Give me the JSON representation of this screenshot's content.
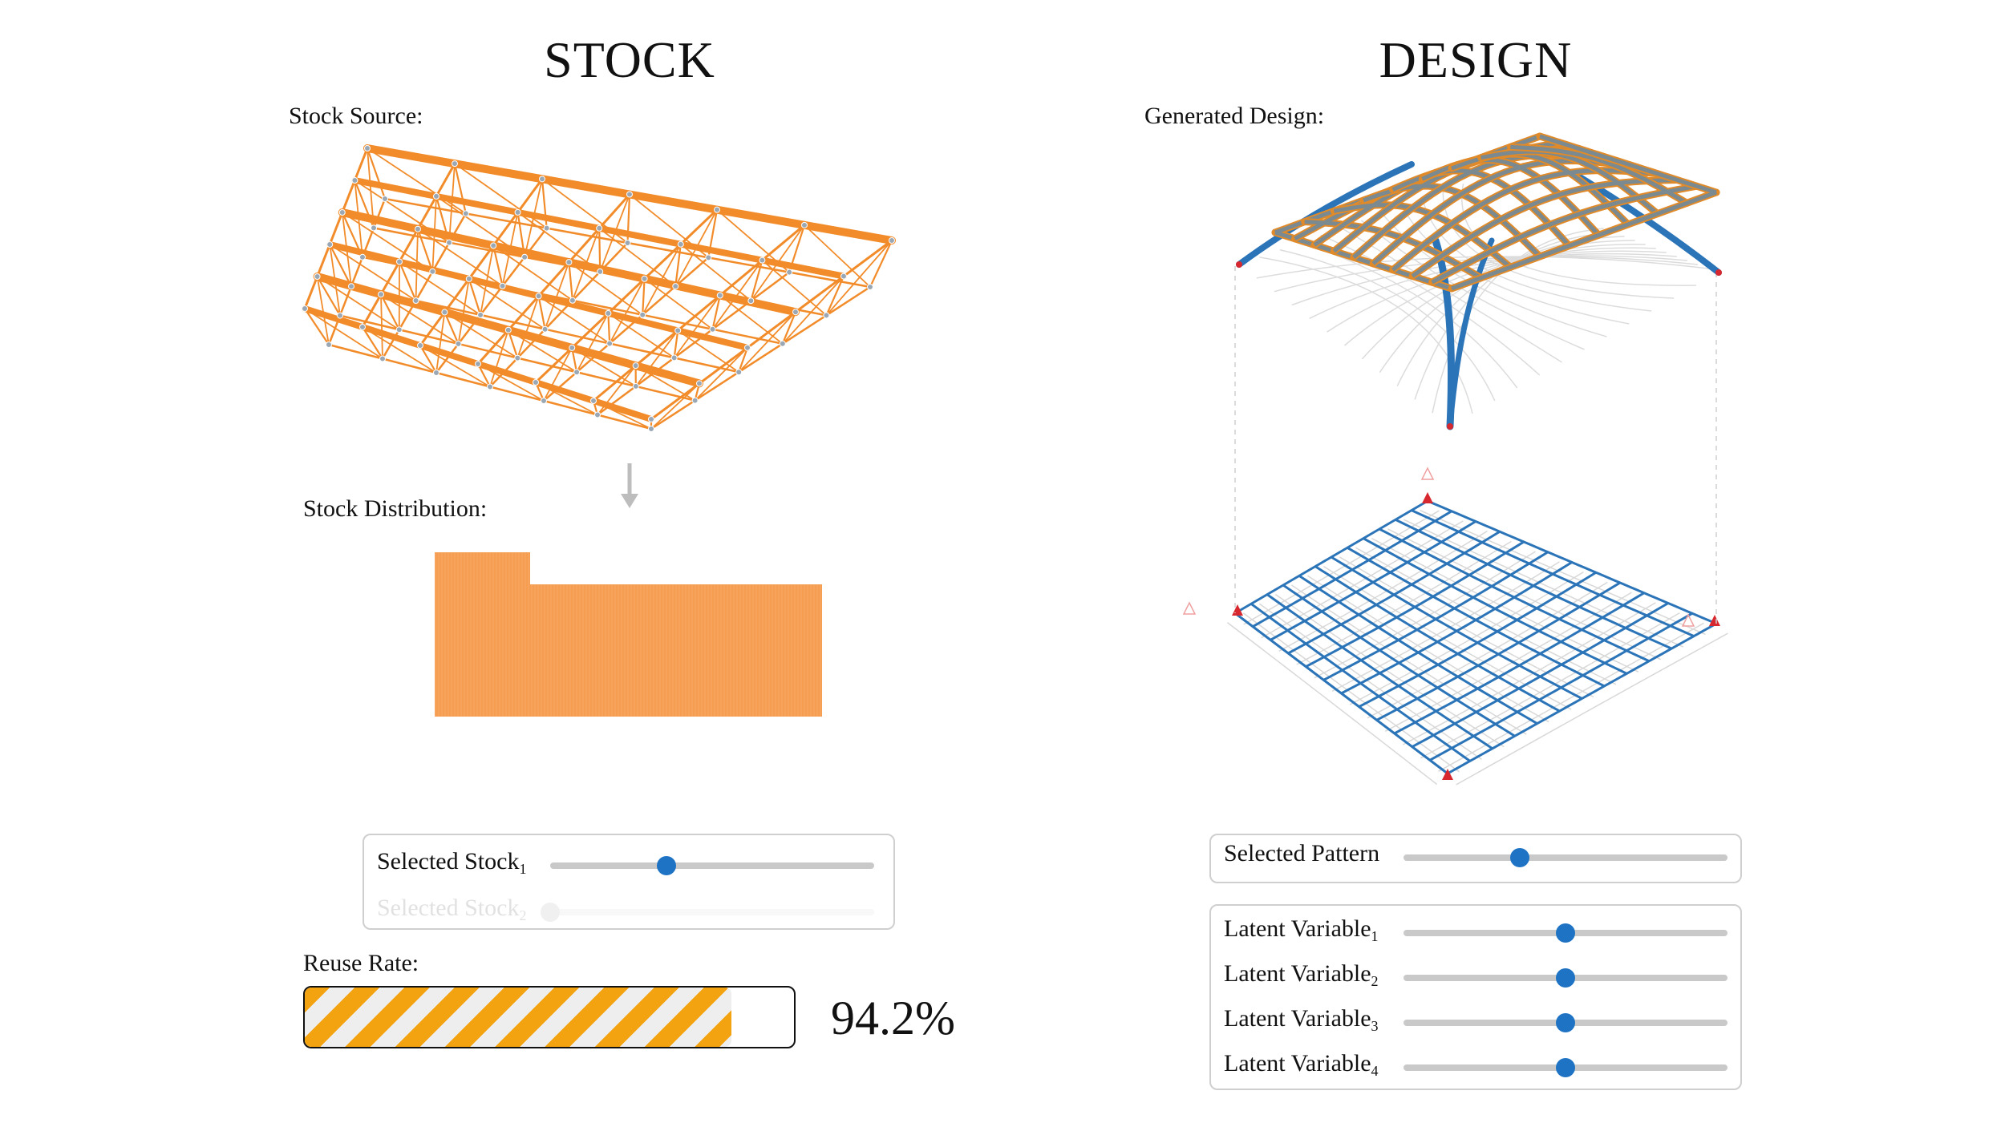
{
  "left": {
    "heading": "STOCK",
    "source_label": "Stock Source:",
    "distribution_label": "Stock Distribution:",
    "controls": [
      {
        "label": "Selected Stock",
        "sub": "1",
        "value": 0.36
      },
      {
        "label": "Selected Stock",
        "sub": "2",
        "value": 0.0
      }
    ],
    "reuse": {
      "label": "Reuse Rate:",
      "value_text": "94.2%",
      "value": 0.942
    }
  },
  "right": {
    "heading": "DESIGN",
    "design_label": "Generated Design:",
    "pattern": {
      "label": "Selected Pattern",
      "value": 0.36
    },
    "latents": [
      {
        "label": "Latent Variable",
        "sub": "1",
        "value": 0.5
      },
      {
        "label": "Latent Variable",
        "sub": "2",
        "value": 0.5
      },
      {
        "label": "Latent Variable",
        "sub": "3",
        "value": 0.5
      },
      {
        "label": "Latent Variable",
        "sub": "4",
        "value": 0.5
      }
    ]
  },
  "colors": {
    "stock_orange": "#f28c2a",
    "dist_orange": "#f7a35c",
    "design_blue": "#2b74b8",
    "support_red": "#d7282f",
    "knob_blue": "#1f73c4"
  }
}
